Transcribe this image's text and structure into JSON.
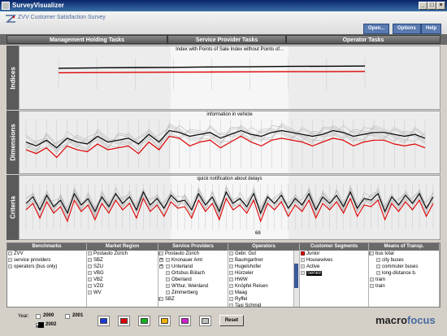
{
  "window": {
    "title": "SurveyVisualizer",
    "min": "_",
    "max": "□",
    "close": "×"
  },
  "header": {
    "survey_title": "ZVV  Customer Satisfaction Survey",
    "buttons": [
      "Open...",
      "Options",
      "Help"
    ]
  },
  "tabs": [
    "Management Holding Tasks",
    "Service Provider Tasks",
    "Operator Tasks"
  ],
  "panels": [
    {
      "label": "Indices",
      "caption": "Index with Points of Sale  Index without Points of..."
    },
    {
      "label": "Dimensions",
      "caption": "information in vehicle"
    },
    {
      "label": "Criteria",
      "caption": "quick notification about delays",
      "tick": "68"
    }
  ],
  "chart_data": [
    {
      "type": "line",
      "title": "Indices",
      "series": [
        {
          "color": "#000000",
          "values": [
            70,
            70.2,
            70.4,
            70.5,
            70.7,
            70.8,
            71,
            71.1,
            71.2
          ]
        },
        {
          "color": "#e00000",
          "values": [
            67.5,
            67.6,
            67.7,
            67.8,
            67.9,
            68,
            68.1,
            68.1,
            68.2
          ]
        }
      ]
    },
    {
      "type": "line",
      "title": "Dimensions",
      "series": [
        {
          "color": "#000000",
          "values": [
            66,
            64,
            67,
            63,
            68,
            66,
            65,
            69,
            66,
            67,
            68,
            65,
            70,
            66,
            72,
            71,
            69,
            70,
            71,
            68,
            70,
            72,
            70,
            69,
            71,
            72,
            71,
            70,
            69,
            70,
            72,
            71,
            69,
            70,
            71,
            71,
            70,
            69,
            70,
            68
          ]
        },
        {
          "color": "#e00000",
          "values": [
            62,
            60,
            63,
            58,
            64,
            62,
            61,
            65,
            62,
            63,
            64,
            60,
            66,
            62,
            69,
            68,
            64,
            66,
            67,
            63,
            66,
            69,
            66,
            64,
            67,
            68,
            67,
            66,
            64,
            66,
            68,
            67,
            64,
            66,
            67,
            67,
            65,
            64,
            65,
            63
          ]
        }
      ]
    },
    {
      "type": "line",
      "title": "Criteria",
      "series": [
        {
          "color": "#000000",
          "values": [
            66,
            70,
            62,
            71,
            64,
            68,
            60,
            72,
            65,
            69,
            61,
            70,
            64,
            72,
            66,
            70,
            62,
            73,
            65,
            69,
            63,
            71,
            67,
            68,
            62,
            72,
            65,
            70,
            61,
            73,
            66,
            69,
            64,
            72,
            60,
            70,
            66,
            71,
            63,
            69,
            65,
            72,
            62,
            70,
            66,
            71,
            64,
            73,
            63,
            69,
            68,
            72,
            61,
            70,
            65,
            71,
            66,
            72,
            63,
            70
          ]
        },
        {
          "color": "#e00000",
          "values": [
            62,
            66,
            57,
            67,
            60,
            64,
            55,
            68,
            61,
            65,
            56,
            66,
            60,
            68,
            62,
            66,
            57,
            69,
            61,
            65,
            58,
            67,
            63,
            64,
            57,
            68,
            61,
            66,
            56,
            69,
            62,
            65,
            60,
            68,
            55,
            66,
            62,
            67,
            58,
            65,
            61,
            68,
            57,
            66,
            62,
            67,
            60,
            69,
            58,
            65,
            64,
            68,
            56,
            66,
            61,
            67,
            62,
            68,
            58,
            66
          ]
        }
      ]
    }
  ],
  "filters": [
    {
      "title": "Benchmarks",
      "items": [
        {
          "label": "ZVV"
        },
        {
          "label": "service providers"
        },
        {
          "label": "operators (bus only)"
        }
      ]
    },
    {
      "title": "Market Region",
      "items": [
        {
          "label": "Postauto Zürich"
        },
        {
          "label": "SBZ"
        },
        {
          "label": "SZU"
        },
        {
          "label": "VBG"
        },
        {
          "label": "VBZ"
        },
        {
          "label": "VZO"
        },
        {
          "label": "WV"
        }
      ]
    },
    {
      "title": "Service Providers",
      "items": [
        {
          "label": "Postauto Zürich",
          "level": 0,
          "expander": "-"
        },
        {
          "label": "Knonauer Amt",
          "level": 1,
          "expander": "+"
        },
        {
          "label": "Unterland",
          "level": 1,
          "expander": "+"
        },
        {
          "label": "Ortsbus Bülach",
          "level": 1
        },
        {
          "label": "Oberland",
          "level": 1
        },
        {
          "label": "W'thur, Weinland",
          "level": 1
        },
        {
          "label": "Zimmerberg",
          "level": 1
        },
        {
          "label": "SBZ",
          "level": 0,
          "expander": "+"
        }
      ]
    },
    {
      "title": "Operators",
      "items": [
        {
          "label": "Gebr. Gut"
        },
        {
          "label": "Baumgartner"
        },
        {
          "label": "Hugelshofer"
        },
        {
          "label": "Hürzeler"
        },
        {
          "label": "HWW"
        },
        {
          "label": "Knöpfel Reisen"
        },
        {
          "label": "Maag"
        },
        {
          "label": "Ryffel"
        },
        {
          "label": "Taxi Schmid"
        }
      ]
    },
    {
      "title": "Customer Segments",
      "items": [
        {
          "label": "Junior",
          "color": "#e00000"
        },
        {
          "label": "Housewives"
        },
        {
          "label": "Active"
        },
        {
          "label": "Senior",
          "selected": true
        }
      ]
    },
    {
      "title": "Means of Transp.",
      "items": [
        {
          "label": "bus total",
          "level": 0,
          "expander": "-"
        },
        {
          "label": "city buses",
          "level": 1
        },
        {
          "label": "commuter buses",
          "level": 1
        },
        {
          "label": "long-distance b.",
          "level": 1
        },
        {
          "label": "tram",
          "level": 0
        },
        {
          "label": "train",
          "level": 0
        }
      ]
    }
  ],
  "bottom": {
    "year_label": "Year:",
    "years": [
      {
        "label": "2000",
        "checked": false
      },
      {
        "label": "2001",
        "checked": false
      },
      {
        "label": "2002",
        "checked": true
      }
    ],
    "swatches": [
      "#1a3ad8",
      "#e00000",
      "#10b020",
      "#f0b000",
      "#d020d0",
      "#c0c0c0"
    ],
    "reset": "Reset",
    "brand_a": "macro",
    "brand_b": "focus"
  }
}
